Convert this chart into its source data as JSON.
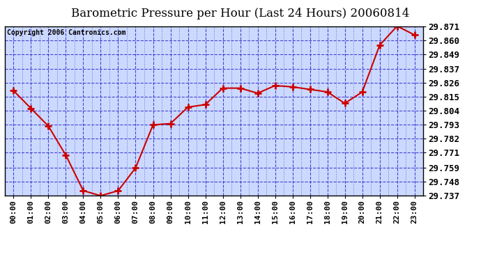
{
  "title": "Barometric Pressure per Hour (Last 24 Hours) 20060814",
  "copyright": "Copyright 2006 Cantronics.com",
  "hours": [
    "00:00",
    "01:00",
    "02:00",
    "03:00",
    "04:00",
    "05:00",
    "06:00",
    "07:00",
    "08:00",
    "09:00",
    "10:00",
    "11:00",
    "12:00",
    "13:00",
    "14:00",
    "15:00",
    "16:00",
    "17:00",
    "18:00",
    "19:00",
    "20:00",
    "21:00",
    "22:00",
    "23:00"
  ],
  "values": [
    29.82,
    29.806,
    29.792,
    29.769,
    29.741,
    29.737,
    29.741,
    29.759,
    29.793,
    29.794,
    29.807,
    29.809,
    29.822,
    29.822,
    29.818,
    29.824,
    29.823,
    29.821,
    29.819,
    29.81,
    29.819,
    29.856,
    29.871,
    29.864
  ],
  "ylim": [
    29.737,
    29.871
  ],
  "yticks": [
    29.737,
    29.748,
    29.759,
    29.771,
    29.782,
    29.793,
    29.804,
    29.815,
    29.826,
    29.837,
    29.849,
    29.86,
    29.871
  ],
  "line_color": "#cc0000",
  "marker_color": "#cc0000",
  "bg_color": "#ffffff",
  "plot_bg_color": "#ccd9ff",
  "grid_color_major": "#3333cc",
  "grid_color_minor": "#6666cc",
  "title_color": "#000000",
  "copyright_color": "#000000",
  "title_fontsize": 12,
  "copyright_fontsize": 7,
  "tick_fontsize": 8,
  "ytick_fontsize": 9,
  "xlabel_rotation": 90
}
